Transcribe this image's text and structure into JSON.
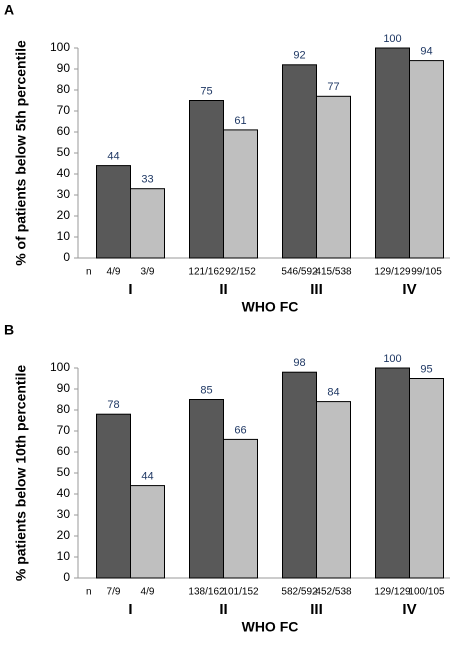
{
  "chart_data": [
    {
      "type": "bar",
      "panel": "A",
      "ylabel": "% of patients below 5th percentile",
      "xlabel": "WHO FC",
      "categories": [
        "I",
        "II",
        "III",
        "IV"
      ],
      "n_label": "n",
      "series": [
        {
          "color": "#595959",
          "values": [
            44,
            75,
            92,
            100
          ],
          "n_labels": [
            "4/9",
            "121/162",
            "546/592",
            "129/129"
          ]
        },
        {
          "color": "#bfbfbf",
          "values": [
            33,
            61,
            77,
            94
          ],
          "n_labels": [
            "3/9",
            "92/152",
            "415/538",
            "99/105"
          ]
        }
      ],
      "ylim": [
        0,
        100
      ],
      "yticks": [
        0,
        10,
        20,
        30,
        40,
        50,
        60,
        70,
        80,
        90,
        100
      ],
      "grid": false
    },
    {
      "type": "bar",
      "panel": "B",
      "ylabel": "% patients below 10th percentile",
      "xlabel": "WHO FC",
      "categories": [
        "I",
        "II",
        "III",
        "IV"
      ],
      "n_label": "n",
      "series": [
        {
          "color": "#595959",
          "values": [
            78,
            85,
            98,
            100
          ],
          "n_labels": [
            "7/9",
            "138/162",
            "582/592",
            "129/129"
          ]
        },
        {
          "color": "#bfbfbf",
          "values": [
            44,
            66,
            84,
            95
          ],
          "n_labels": [
            "4/9",
            "101/152",
            "452/538",
            "100/105"
          ]
        }
      ],
      "ylim": [
        0,
        100
      ],
      "yticks": [
        0,
        10,
        20,
        30,
        40,
        50,
        60,
        70,
        80,
        90,
        100
      ],
      "grid": false
    }
  ]
}
